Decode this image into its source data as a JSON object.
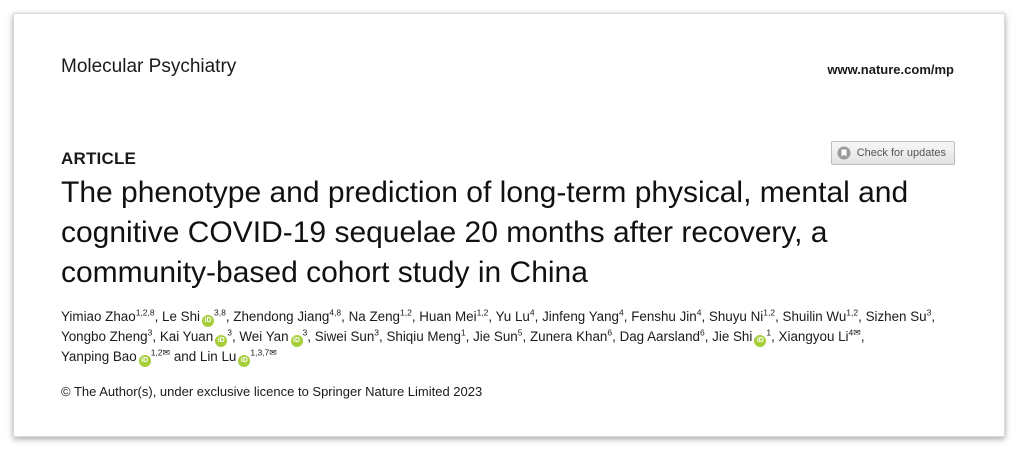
{
  "journal": "Molecular Psychiatry",
  "url": "www.nature.com/mp",
  "article_type": "ARTICLE",
  "check_updates_label": "Check for updates",
  "title": "The phenotype and prediction of long-term physical, mental and cognitive COVID-19 sequelae 20 months after recovery, a community-based cohort study in China",
  "authors": [
    {
      "name": "Yimiao Zhao",
      "aff": "1,2,8",
      "orcid": false
    },
    {
      "name": "Le Shi",
      "aff": "3,8",
      "orcid": true
    },
    {
      "name": "Zhendong Jiang",
      "aff": "4,8",
      "orcid": false
    },
    {
      "name": "Na Zeng",
      "aff": "1,2",
      "orcid": false
    },
    {
      "name": "Huan Mei",
      "aff": "1,2",
      "orcid": false
    },
    {
      "name": "Yu Lu",
      "aff": "4",
      "orcid": false
    },
    {
      "name": "Jinfeng Yang",
      "aff": "4",
      "orcid": false
    },
    {
      "name": "Fenshu Jin",
      "aff": "4",
      "orcid": false
    },
    {
      "name": "Shuyu Ni",
      "aff": "1,2",
      "orcid": false
    },
    {
      "name": "Shuilin Wu",
      "aff": "1,2",
      "orcid": false
    },
    {
      "name": "Sizhen Su",
      "aff": "3",
      "orcid": false
    },
    {
      "name": "Yongbo Zheng",
      "aff": "3",
      "orcid": false
    },
    {
      "name": "Kai Yuan",
      "aff": "3",
      "orcid": true
    },
    {
      "name": "Wei Yan",
      "aff": "3",
      "orcid": true
    },
    {
      "name": "Siwei Sun",
      "aff": "3",
      "orcid": false
    },
    {
      "name": "Shiqiu Meng",
      "aff": "1",
      "orcid": false
    },
    {
      "name": "Jie Sun",
      "aff": "5",
      "orcid": false
    },
    {
      "name": "Zunera Khan",
      "aff": "6",
      "orcid": false
    },
    {
      "name": "Dag Aarsland",
      "aff": "6",
      "orcid": false
    },
    {
      "name": "Jie Shi",
      "aff": "1",
      "orcid": true
    },
    {
      "name": "Xiangyou Li",
      "aff": "4",
      "orcid": false,
      "corresponding": true
    },
    {
      "name": "Yanping Bao",
      "aff": "1,2",
      "orcid": true,
      "corresponding": true
    },
    {
      "name": "Lin Lu",
      "aff": "1,3,7",
      "orcid": true,
      "corresponding": true
    }
  ],
  "author_and": "and",
  "copyright": "© The Author(s), under exclusive licence to Springer Nature Limited 2023"
}
